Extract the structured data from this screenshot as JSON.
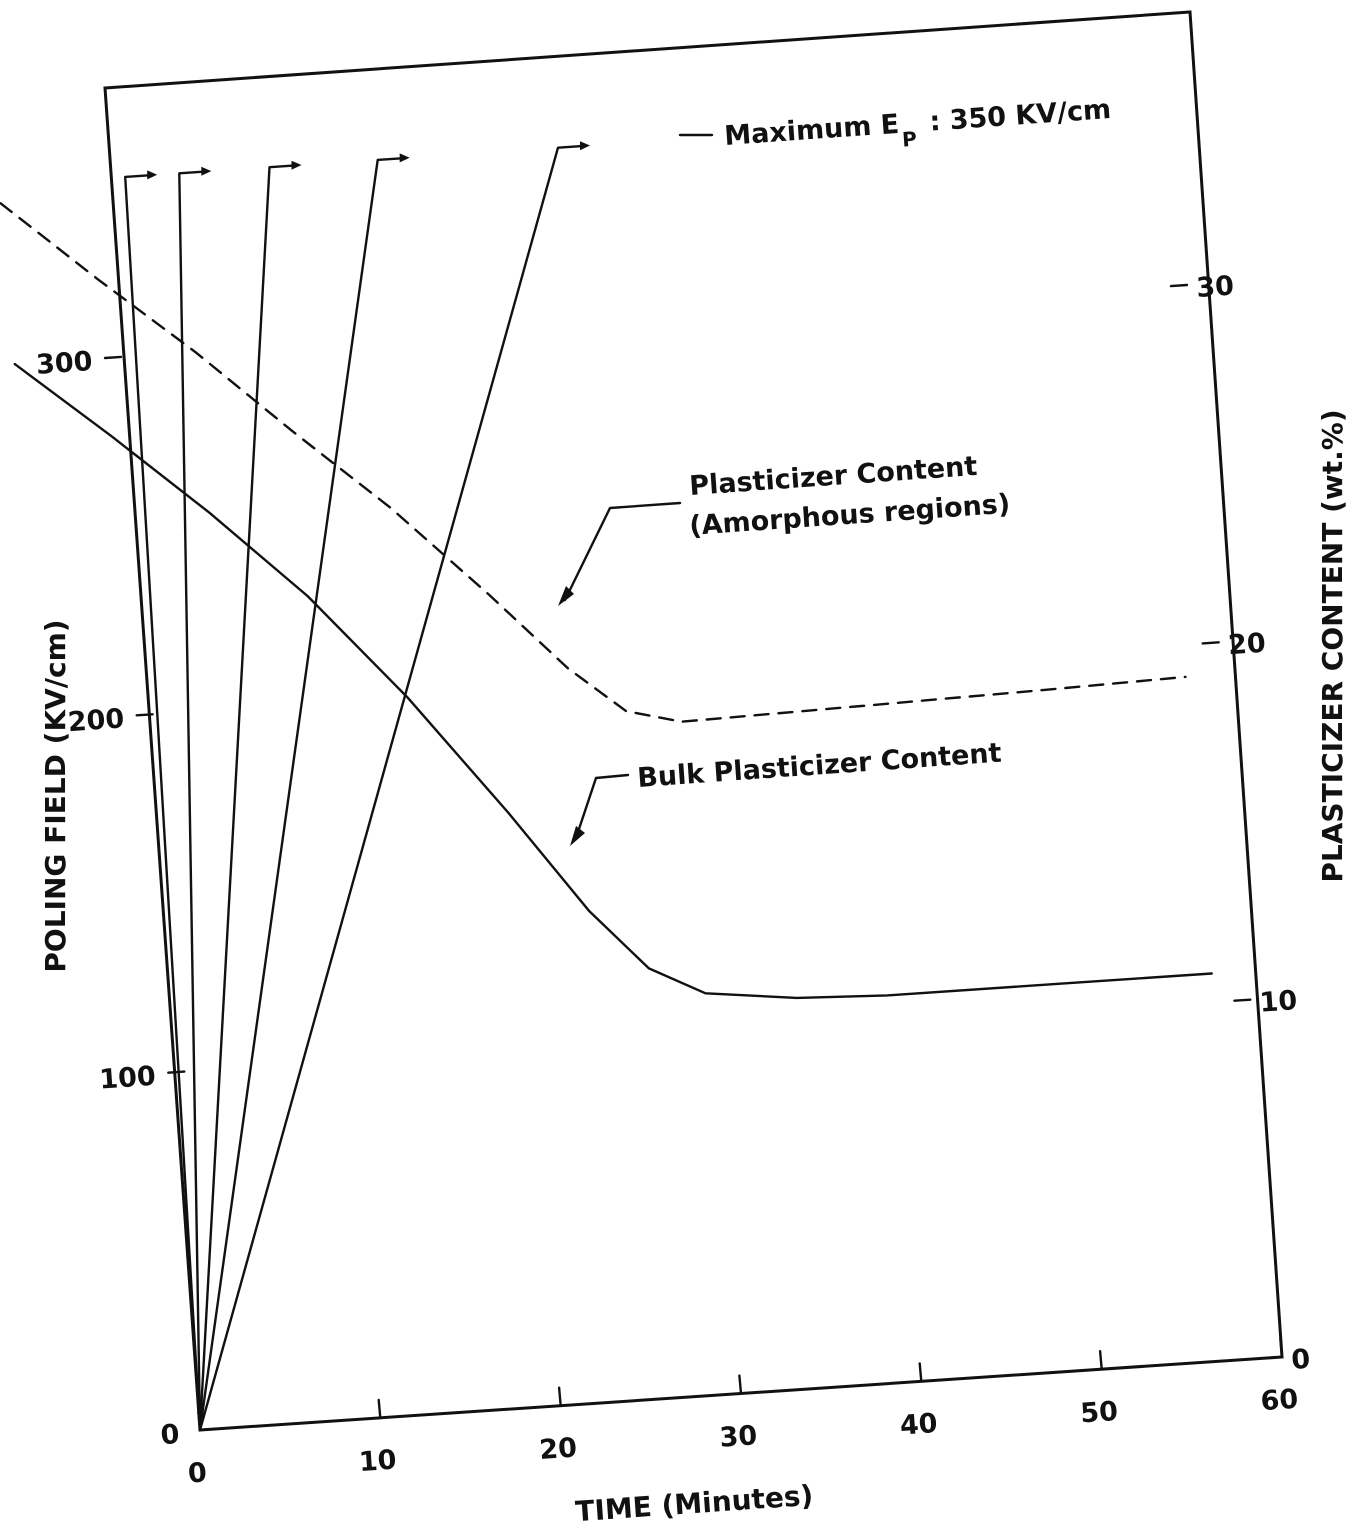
{
  "chart_data": {
    "type": "line",
    "xlabel": "TIME (Minutes)",
    "ylabel_left": "POLING FIELD (KV/cm)",
    "ylabel_right": "PLASTICIZER CONTENT (wt.%)",
    "xlim": [
      0,
      60
    ],
    "ylim_left": [
      0,
      300
    ],
    "ylim_right": [
      0,
      30
    ],
    "x_ticks": [
      "0",
      "10",
      "20",
      "30",
      "40",
      "50",
      "60"
    ],
    "y_left_ticks": [
      "0",
      "100",
      "200",
      "300"
    ],
    "y_right_ticks": [
      "0",
      "10",
      "20",
      "30"
    ],
    "grid": false,
    "ramps": [
      {
        "axis": "left",
        "x": [
          0,
          2
        ],
        "y": [
          0,
          350
        ]
      },
      {
        "axis": "left",
        "x": [
          0,
          5
        ],
        "y": [
          0,
          350
        ]
      },
      {
        "axis": "left",
        "x": [
          0,
          10
        ],
        "y": [
          0,
          350
        ]
      },
      {
        "axis": "left",
        "x": [
          0,
          16
        ],
        "y": [
          0,
          350
        ]
      },
      {
        "axis": "left",
        "x": [
          0,
          26
        ],
        "y": [
          0,
          350
        ]
      }
    ],
    "series": [
      {
        "axis": "right",
        "style": "dashed",
        "x": [
          -5,
          0,
          5,
          10,
          15,
          20,
          24,
          27,
          30,
          40,
          50,
          58
        ],
        "y": [
          34.5,
          32.2,
          30.0,
          27.6,
          25.3,
          22.7,
          20.5,
          19.2,
          18.8,
          18.9,
          19.0,
          19.1
        ]
      },
      {
        "axis": "right",
        "style": "solid",
        "x": [
          -5,
          0,
          5,
          10,
          15,
          20,
          24,
          27,
          30,
          35,
          40,
          50,
          58
        ],
        "y": [
          30.0,
          27.8,
          25.5,
          23.0,
          20.0,
          16.6,
          13.7,
          12.0,
          11.2,
          10.9,
          10.8,
          10.8,
          10.8
        ]
      }
    ],
    "annotations": {
      "max_ep_prefix": "Maximum E",
      "max_ep_sub": "P",
      "max_ep_value": ": 350 KV/cm",
      "amorphous_line1": "Plasticizer Content",
      "amorphous_line2": "(Amorphous regions)",
      "bulk": "Bulk Plasticizer Content"
    }
  }
}
